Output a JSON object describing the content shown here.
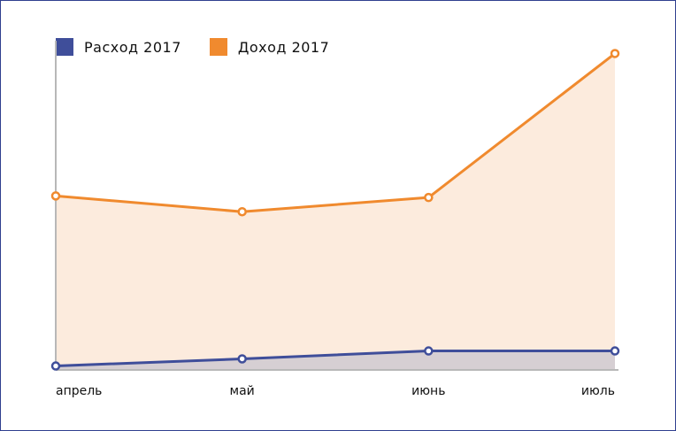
{
  "chart_data": {
    "type": "area",
    "categories": [
      "апрель",
      "май",
      "июнь",
      "июль"
    ],
    "series": [
      {
        "name": "Расход 2017",
        "color": "#3f4e9a",
        "fill": "#d6cfd3",
        "values": [
          5,
          14,
          24,
          24
        ]
      },
      {
        "name": "Доход 2017",
        "color": "#f08a2e",
        "fill": "#fcebdd",
        "values": [
          220,
          200,
          218,
          400
        ]
      }
    ],
    "ylim": [
      0,
      405
    ],
    "grid": false,
    "legend": "top-left"
  }
}
